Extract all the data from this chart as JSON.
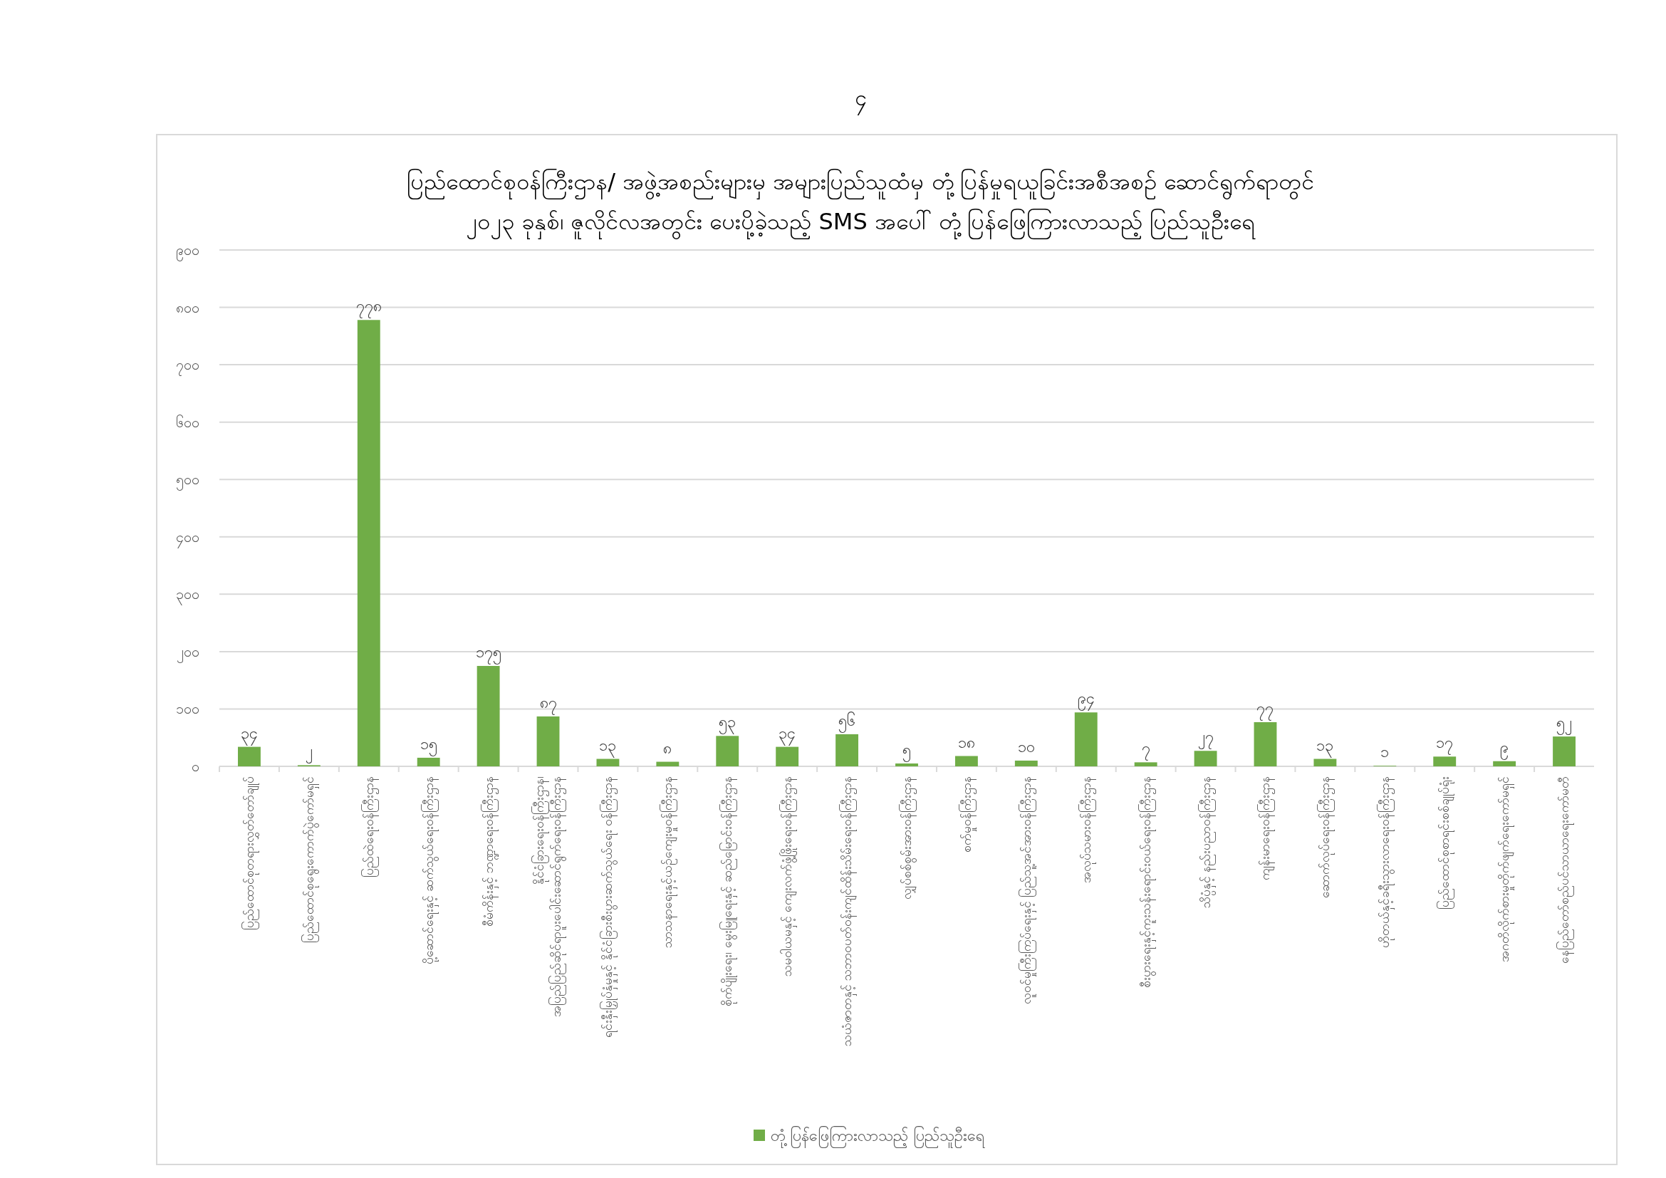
{
  "chart_data": {
    "type": "bar",
    "title": "ပြည်ထောင်စုဝန်ကြီးဌာန/ အဖွဲ့အစည်းများမှ အများပြည်သူထံမှ တုံ့ပြန်မှုရယူခြင်းအစီအစဉ် ဆောင်ရွက်ရာတွင်\n၂၀၂၃ ခုနှစ်၊ ဇူလိုင်လအတွင်း ပေးပို့ခဲ့သည့် SMS အပေါ် တုံ့ပြန်ဖြေကြားလာသည့် ပြည်သူဦးရေ",
    "annotations": [
      "၄"
    ],
    "categories": [
      "ပြည်ထောင်စုတရားလွှတ်တော်ချုပ်",
      "ပြည်ထောင်စုရွေးကောက်ပွဲကော်မရှင်",
      "ပြည်ထဲရေးဝန်ကြီးဌာန",
      "ပို့ဆောင်ရေးနှင့် ဆက်သွယ်ရေးဝန်ကြီးဌာန",
      "စီမံကိန်းနှင့် ဘဏ္ဍာရေးဝန်ကြီးဌာန",
      "နိုင်ငံခြားရေးဝန်ကြီးဌာန၊ အပြည်ပြည်ဆိုင်ရာပူးပေါင်းဆောင်ရွက်ရေးဝန်ကြီးဌာန",
      "ရင်းနှီးမြှုပ်နှံမှုနှင့် နိုင်ငံခြားစီးပွားဆက်သွယ်ရေး ဝန်ကြီးဌာန",
      "သာသနာရေးနှင့်ယဉ်ကျေးမှုဝန်ကြီးဌာန",
      "စိုက်ပျိုးရေး၊ မွေးမြူရေးနှင့် ဆည်မြောင်းဝန်ကြီးဌာန",
      "သမဝါယမနှင့် ကျေးလက်ဖွံ့ဖြိုးရေးဝန်ကြီးဌာန",
      "သယံဇာတနှင့် သဘာဝပတ်ဝန်းကျင်ထိန်းသိမ်းရေးဝန်ကြီးဌာန",
      "လျှပ်စစ်စွမ်းအားဝန်ကြီးဌာန",
      "စက်မှုဝန်ကြီးဌာန",
      "လူဝင်မှုကြီးကြပ်ရေးနှင့် ပြည်သူ့အင်အားဝန်ကြီးဌာန",
      "အလုပ်သမားဝန်ကြီးဌာန",
      "စီးပွားရေးနှင့်ကူးသန်းရောင်းဝယ်ရေးဝန်ကြီးဌာန",
      "သိပ္ပံနှင့် နည်းပညာဝန်ကြီးဌာန",
      "ကျန်းမာရေးဝန်ကြီးဌာန",
      "ဆောက်လုပ်ရေးဝန်ကြီးဌာန",
      "ဟိုတယ်နှင့်ခရီးသွားလာရေးဝန်ကြီးဌာန",
      "ပြည်ထောင်စုစာရင်းစစ်ချုပ်ရုံး",
      "အဂတိလိုက်စားမှုတိုက်ဖျက်ရေးကော်မရှင်",
      "နေပြည်တော်စည်ပင်သာယာရေးကော်မတီ"
    ],
    "series": [
      {
        "name": "တုံ့ပြန်ဖြေကြားလာသည့် ပြည်သူဦးရေ",
        "color": "#70ad47",
        "values": [
          34,
          2,
          778,
          15,
          175,
          87,
          13,
          8,
          53,
          34,
          56,
          5,
          18,
          10,
          94,
          7,
          27,
          77,
          13,
          1,
          17,
          9,
          52
        ],
        "value_labels": [
          "၃၄",
          "၂",
          "၇၇၈",
          "၁၅",
          "၁၇၅",
          "၈၇",
          "၁၃",
          "၈",
          "၅၃",
          "၃၄",
          "၅၆",
          "၅",
          "၁၈",
          "၁၀",
          "၉၄",
          "၇",
          "၂၇",
          "၇၇",
          "၁၃",
          "၁",
          "၁၇",
          "၉",
          "၅၂"
        ]
      }
    ],
    "ylim": [
      0,
      900
    ],
    "yticks": [
      {
        "value": 0,
        "label": "၀"
      },
      {
        "value": 100,
        "label": "၁၀၀"
      },
      {
        "value": 200,
        "label": "၂၀၀"
      },
      {
        "value": 300,
        "label": "၃၀၀"
      },
      {
        "value": 400,
        "label": "၄၀၀"
      },
      {
        "value": 500,
        "label": "၅၀၀"
      },
      {
        "value": 600,
        "label": "၆၀၀"
      },
      {
        "value": 700,
        "label": "၇၀၀"
      },
      {
        "value": 800,
        "label": "၈၀၀"
      },
      {
        "value": 900,
        "label": "၉၀၀"
      }
    ],
    "grid": "y",
    "legend": "bottom"
  }
}
